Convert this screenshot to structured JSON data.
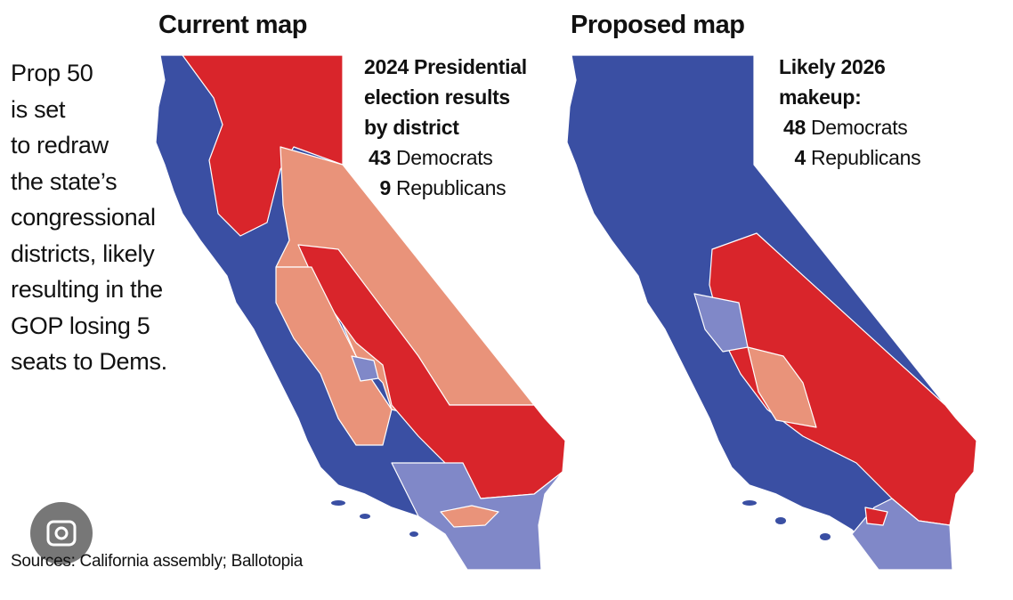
{
  "description": [
    "Prop 50",
    "is set",
    "to redraw",
    "the state’s",
    "congressional",
    "districts, likely",
    "resulting in the",
    "GOP losing 5",
    "seats to Dems."
  ],
  "maps": [
    {
      "title": "Current map",
      "legend": {
        "heading": [
          "2024 Presidential",
          "election results",
          "by district"
        ],
        "rows": [
          {
            "count": 43,
            "label": "Democrats"
          },
          {
            "count": 9,
            "label": "Republicans"
          }
        ]
      }
    },
    {
      "title": "Proposed map",
      "legend": {
        "heading": [
          "Likely 2026",
          "makeup:"
        ],
        "rows": [
          {
            "count": 48,
            "label": "Democrats"
          },
          {
            "count": 4,
            "label": "Republicans"
          }
        ]
      }
    }
  ],
  "source": "Sources: California assembly; Ballotopia"
}
